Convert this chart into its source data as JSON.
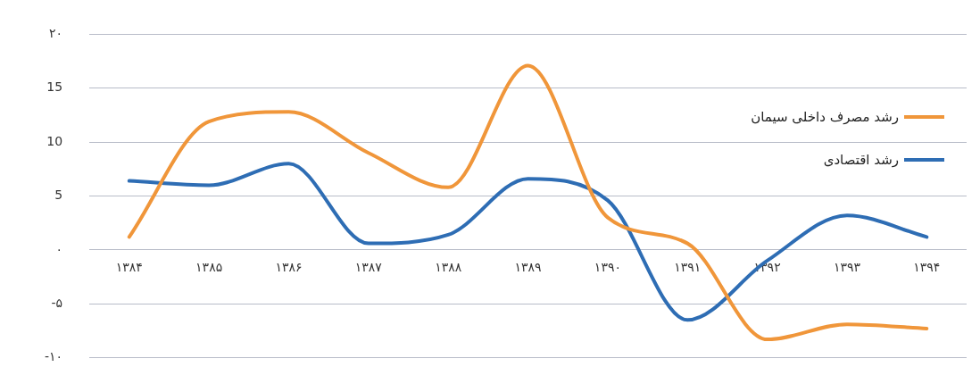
{
  "chart_data": {
    "type": "line",
    "categories": [
      "۱۳۸۴",
      "۱۳۸۵",
      "۱۳۸۶",
      "۱۳۸۷",
      "۱۳۸۸",
      "۱۳۸۹",
      "۱۳۹۰",
      "۱۳۹۱",
      "۱۳۹۲",
      "۱۳۹۳",
      "۱۳۹۴"
    ],
    "series": [
      {
        "name": "رشد مصرف داخلی سیمان",
        "color": "#f0963a",
        "values": [
          1.2,
          11.9,
          12.8,
          9,
          5.8,
          17.1,
          3,
          0.6,
          -8.3,
          -6.9,
          -7.3
        ]
      },
      {
        "name": "رشد اقتصادی",
        "color": "#2e6db4",
        "values": [
          6.4,
          6,
          8,
          0.6,
          1.4,
          6.6,
          4.6,
          -6.5,
          -1,
          3.2,
          1.2
        ]
      }
    ],
    "ylim": [
      -10,
      20
    ],
    "yticks": [
      {
        "value": -10,
        "label": "-۱۰"
      },
      {
        "value": -5,
        "label": "-۵"
      },
      {
        "value": 0,
        "label": "۰"
      },
      5,
      10,
      15,
      {
        "value": 20,
        "label": "۲۰"
      }
    ],
    "grid": "y",
    "legend": "top right",
    "marker": "none",
    "line_style": "solid"
  }
}
